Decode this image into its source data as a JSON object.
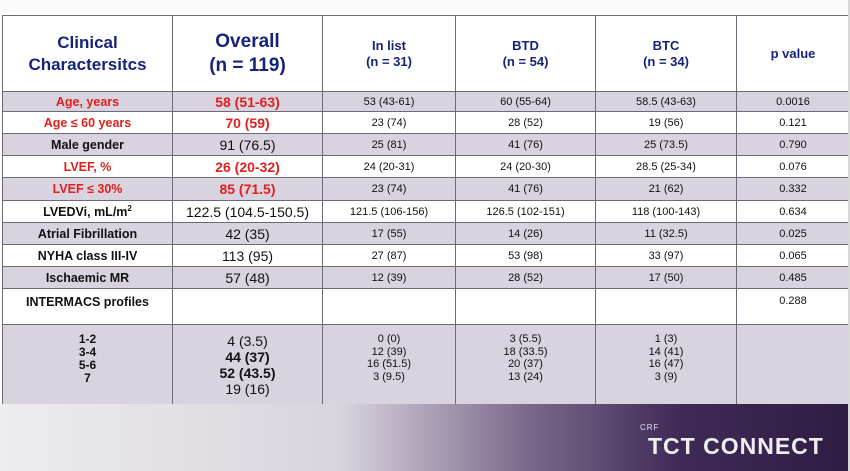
{
  "header": {
    "clinical": [
      "Clinical",
      "Charactersitcs"
    ],
    "overall": [
      "Overall",
      "(n = 119)"
    ],
    "in_list": [
      "In list",
      "(n = 31)"
    ],
    "btd": [
      "BTD",
      "(n = 54)"
    ],
    "btc": [
      "BTC",
      "(n = 34)"
    ],
    "p_value": "p value"
  },
  "rows": [
    {
      "label": "Age, years",
      "overall": "58 (51-63)",
      "in_list": "53 (43-61)",
      "btd": "60 (55-64)",
      "btc": "58.5 (43-63)",
      "p": "0.0016"
    },
    {
      "label": "Age ≤ 60 years",
      "overall": "70 (59)",
      "in_list": "23 (74)",
      "btd": "28 (52)",
      "btc": "19 (56)",
      "p": "0.121"
    },
    {
      "label": "Male gender",
      "overall": "91 (76.5)",
      "in_list": "25 (81)",
      "btd": "41 (76)",
      "btc": "25 (73.5)",
      "p": "0.790"
    },
    {
      "label": "LVEF, %",
      "overall": "26 (20-32)",
      "in_list": "24 (20-31)",
      "btd": "24 (20-30)",
      "btc": "28.5 (25-34)",
      "p": "0.076"
    },
    {
      "label": "LVEF ≤ 30%",
      "overall": "85 (71.5)",
      "in_list": "23 (74)",
      "btd": "41 (76)",
      "btc": "21 (62)",
      "p": "0.332"
    },
    {
      "label": "LVEDVi, mL/m",
      "label_sup": "2",
      "overall": "122.5 (104.5-150.5)",
      "in_list": "121.5 (106-156)",
      "btd": "126.5 (102-151)",
      "btc": "118 (100-143)",
      "p": "0.634"
    },
    {
      "label": "Atrial Fibrillation",
      "overall": "42 (35)",
      "in_list": "17 (55)",
      "btd": "14 (26)",
      "btc": "11 (32.5)",
      "p": "0.025"
    },
    {
      "label": "NYHA class III-IV",
      "overall": "113 (95)",
      "in_list": "27 (87)",
      "btd": "53 (98)",
      "btc": "33 (97)",
      "p": "0.065"
    },
    {
      "label": "Ischaemic MR",
      "overall": "57 (48)",
      "in_list": "12 (39)",
      "btd": "28 (52)",
      "btc": "17 (50)",
      "p": "0.485"
    },
    {
      "label": "INTERMACS profiles",
      "overall": "",
      "in_list": "",
      "btd": "",
      "btc": "",
      "p": "0.288"
    }
  ],
  "intermacs": {
    "labels": [
      "1-2",
      "3-4",
      "5-6",
      "7"
    ],
    "overall": [
      "4 (3.5)",
      "44 (37)",
      "52 (43.5)",
      "19 (16)"
    ],
    "in_list": [
      "0 (0)",
      "12 (39)",
      "16 (51.5)",
      "3 (9.5)"
    ],
    "btd": [
      "3 (5.5)",
      "18 (33.5)",
      "20 (37)",
      "13 (24)"
    ],
    "btc": [
      "1 (3)",
      "14 (41)",
      "16 (47)",
      "3 (9)"
    ]
  },
  "branding": {
    "small": "CRF",
    "main": "TCT CONNECT"
  },
  "colors": {
    "header_text": "#15237a",
    "highlight_red": "#e0201e",
    "shaded_row": "#d8d3df"
  }
}
